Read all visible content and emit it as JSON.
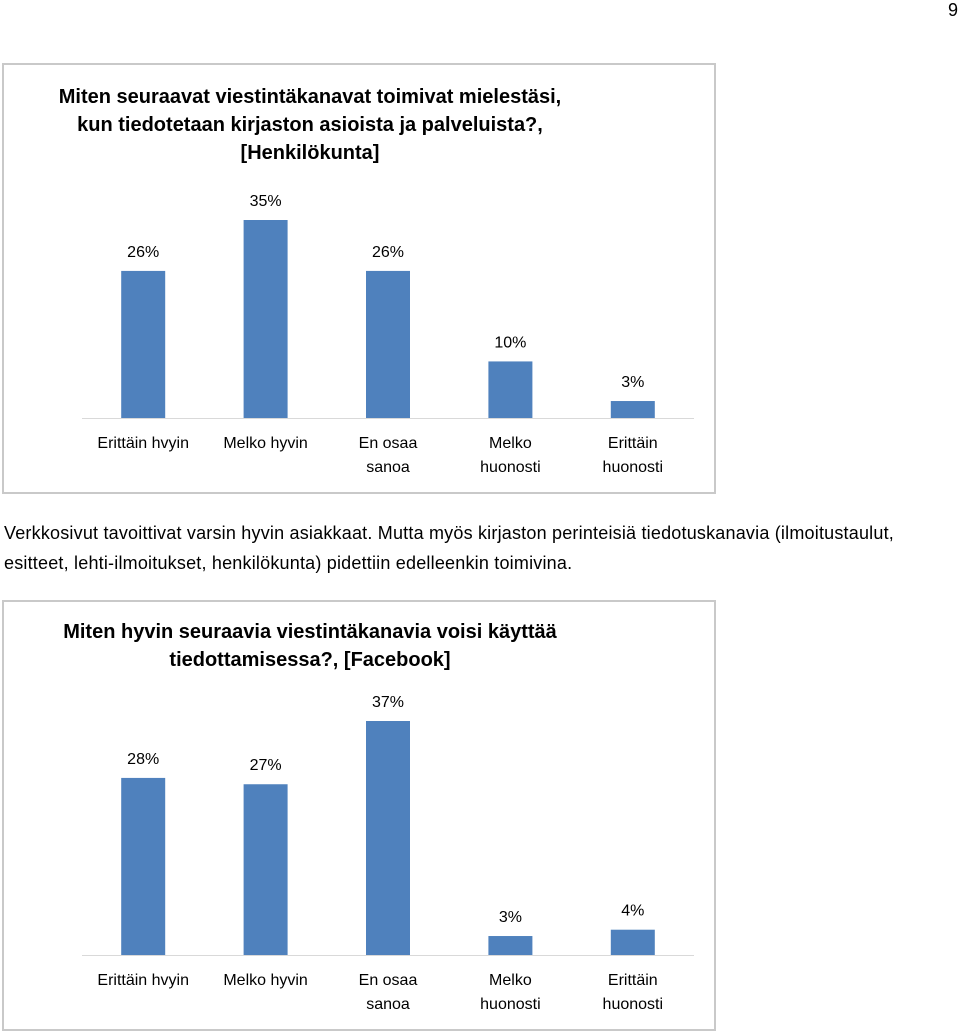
{
  "page": {
    "number": "9"
  },
  "colors": {
    "bar": "#4f81bd",
    "axis": "#d9d9d9",
    "border": "#c9c9c9"
  },
  "paragraph": "Verkkosivut tavoittivat varsin hyvin asiakkaat. Mutta myös kirjaston perinteisiä tiedotuskanavia (ilmoitustaulut, esitteet, lehti-ilmoitukset, henkilökunta) pidettiin edelleenkin toimivina.",
  "chart_data": [
    {
      "type": "bar",
      "title": "Miten seuraavat viestintäkanavat toimivat mielestäsi, kun tiedotetaan kirjaston asioista ja palveluista?, [Henkilökunta]",
      "title_lines": [
        "Miten seuraavat viestintäkanavat toimivat mielestäsi,",
        "kun tiedotetaan kirjaston asioista ja palveluista?,",
        "[Henkilökunta]"
      ],
      "categories": [
        "Erittäin hvyin",
        "Melko hyvin",
        "En osaa sanoa",
        "Melko huonosti",
        "Erittäin huonosti"
      ],
      "category_lines": [
        [
          "Erittäin hvyin"
        ],
        [
          "Melko hyvin"
        ],
        [
          "En osaa",
          "sanoa"
        ],
        [
          "Melko",
          "huonosti"
        ],
        [
          "Erittäin",
          "huonosti"
        ]
      ],
      "values": [
        26,
        35,
        26,
        10,
        3
      ],
      "data_labels": [
        "26%",
        "35%",
        "26%",
        "10%",
        "3%"
      ],
      "xlabel": "",
      "ylabel": "",
      "ylim": [
        0,
        35
      ],
      "grid": false,
      "legend": "none"
    },
    {
      "type": "bar",
      "title": "Miten hyvin seuraavia viestintäkanavia voisi käyttää tiedottamisessa?, [Facebook]",
      "title_lines": [
        "Miten hyvin seuraavia viestintäkanavia voisi käyttää",
        "tiedottamisessa?, [Facebook]"
      ],
      "categories": [
        "Erittäin hvyin",
        "Melko hyvin",
        "En osaa sanoa",
        "Melko huonosti",
        "Erittäin huonosti"
      ],
      "category_lines": [
        [
          "Erittäin hvyin"
        ],
        [
          "Melko hyvin"
        ],
        [
          "En osaa",
          "sanoa"
        ],
        [
          "Melko",
          "huonosti"
        ],
        [
          "Erittäin",
          "huonosti"
        ]
      ],
      "values": [
        28,
        27,
        37,
        3,
        4
      ],
      "data_labels": [
        "28%",
        "27%",
        "37%",
        "3%",
        "4%"
      ],
      "xlabel": "",
      "ylabel": "",
      "ylim": [
        0,
        37
      ],
      "grid": false,
      "legend": "none"
    }
  ]
}
